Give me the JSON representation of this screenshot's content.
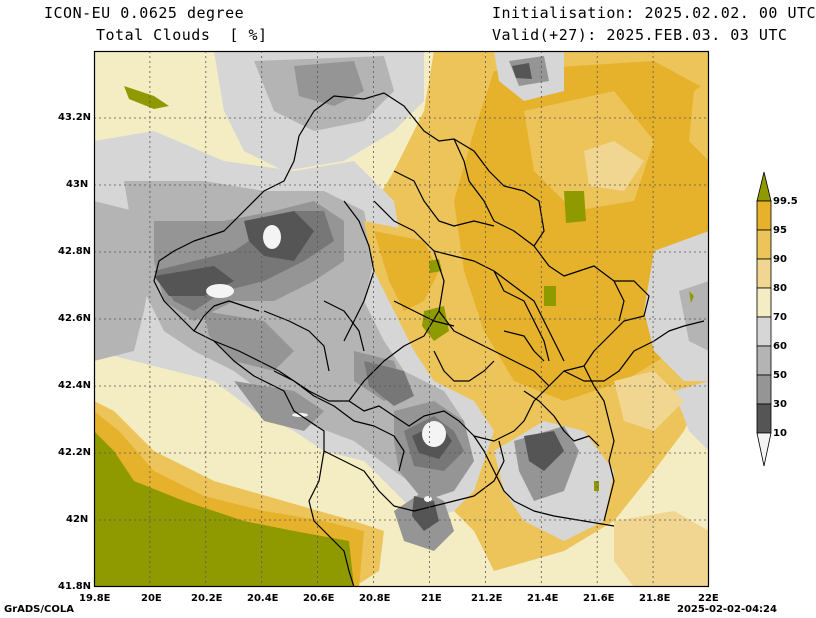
{
  "header": {
    "model": "ICON-EU 0.0625 degree",
    "variable": "Total Clouds  [ %]",
    "init": "Initialisation: 2025.02.02. 00 UTC",
    "valid": "Valid(+27): 2025.FEB.03. 03 UTC"
  },
  "axes": {
    "lat_ticks": [
      "43.2N",
      "43N",
      "42.8N",
      "42.6N",
      "42.4N",
      "42.2N",
      "42N",
      "41.8N"
    ],
    "lon_ticks": [
      "19.8E",
      "20E",
      "20.2E",
      "20.4E",
      "20.6E",
      "20.8E",
      "21E",
      "21.2E",
      "21.4E",
      "21.6E",
      "21.8E",
      "22E"
    ],
    "lat_range": [
      41.8,
      43.4
    ],
    "lon_range": [
      19.8,
      22.0
    ]
  },
  "colorbar": {
    "labels": [
      "99.5",
      "95",
      "90",
      "80",
      "70",
      "60",
      "50",
      "30",
      "10"
    ],
    "colors": [
      "#8f9a00",
      "#e6b22c",
      "#edc45a",
      "#f0d690",
      "#f4ecc3",
      "#d6d6d6",
      "#b4b4b4",
      "#959595",
      "#777777",
      "#555555",
      "#f4f4f4"
    ]
  },
  "footer": {
    "left": "GrADS/COLA",
    "right": "2025-02-02-04:24"
  }
}
